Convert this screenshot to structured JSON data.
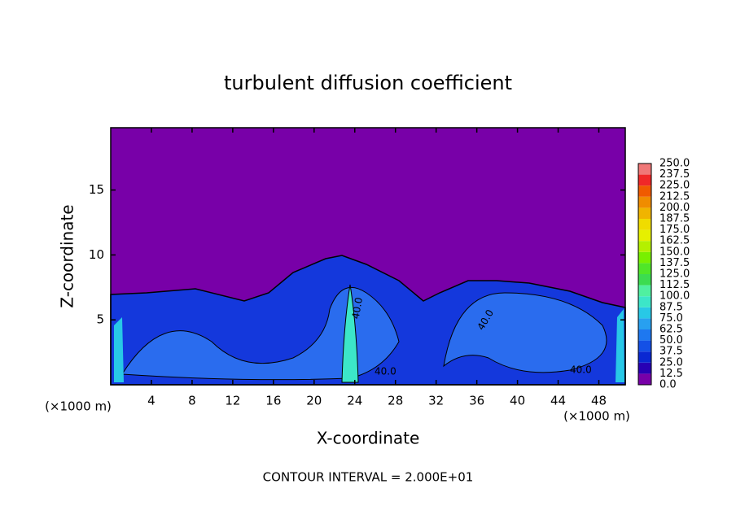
{
  "chart_data": {
    "type": "contour",
    "title": "turbulent diffusion coefficient",
    "xlabel": "X-coordinate",
    "ylabel": "Z-coordinate",
    "x_unit": "(×1000 m)",
    "y_unit": "(×1000 m)",
    "footer": "CONTOUR INTERVAL = 2.000E+01",
    "xlim": [
      0,
      50.6
    ],
    "xticks": [
      4,
      8,
      12,
      16,
      20,
      24,
      28,
      32,
      36,
      40,
      44,
      48
    ],
    "ylim": [
      0,
      19.8
    ],
    "yticks": [
      5,
      10,
      15
    ],
    "contour_labels": [
      "40.0",
      "40.0",
      "40.0",
      "40.0"
    ],
    "levels": [
      {
        "value": 0,
        "label": "0.0"
      },
      12.5,
      {
        "value": 25,
        "label": "25.0"
      },
      37.5,
      {
        "value": 50,
        "label": "50.0"
      },
      62.5,
      {
        "value": 75,
        "label": "75.0"
      },
      87.5,
      {
        "value": 100,
        "label": "100.0"
      },
      112.5,
      {
        "value": 125,
        "label": "125.0"
      },
      137.5,
      {
        "value": 150,
        "label": "150.0"
      },
      162.5,
      {
        "value": 175,
        "label": "175.0"
      },
      187.5,
      {
        "value": 200,
        "label": "200.0"
      },
      212.5,
      {
        "value": 225,
        "label": "225.0"
      },
      237.5,
      {
        "value": 250,
        "label": "250.0"
      }
    ],
    "colors": [
      "#7800a8",
      "#2800b4",
      "#0a28d2",
      "#1450e6",
      "#1e78f0",
      "#28a0f0",
      "#28c8e6",
      "#3ce6c8",
      "#50f0a0",
      "#3cdc50",
      "#50e628",
      "#78f000",
      "#b4f000",
      "#e6f000",
      "#f0dc00",
      "#f0b400",
      "#f08c00",
      "#f05a00",
      "#f02828",
      "#f07878"
    ]
  }
}
